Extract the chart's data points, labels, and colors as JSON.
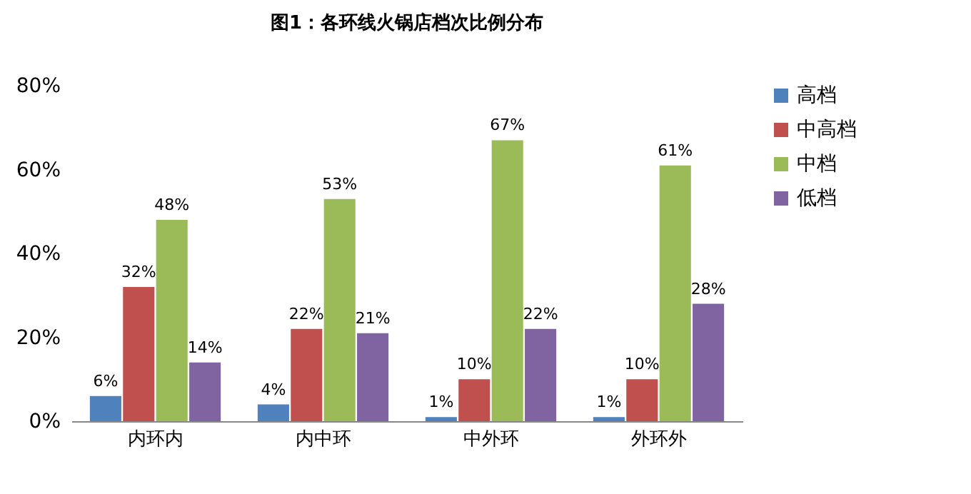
{
  "chart_data": {
    "type": "bar",
    "title": "图1：各环线火锅店档次比例分布",
    "categories": [
      "内环内",
      "内中环",
      "中外环",
      "外环外"
    ],
    "series": [
      {
        "name": "高档",
        "color": "#4f81bd",
        "values": [
          6,
          4,
          1,
          1
        ],
        "value_labels": [
          "6%",
          "4%",
          "1%",
          "1%"
        ]
      },
      {
        "name": "中高档",
        "color": "#c0504d",
        "values": [
          32,
          22,
          10,
          10
        ],
        "value_labels": [
          "32%",
          "22%",
          "10%",
          "10%"
        ]
      },
      {
        "name": "中档",
        "color": "#9bbb59",
        "values": [
          48,
          53,
          67,
          61
        ],
        "value_labels": [
          "48%",
          "53%",
          "67%",
          "61%"
        ]
      },
      {
        "name": "低档",
        "color": "#8064a2",
        "values": [
          14,
          21,
          22,
          28
        ],
        "value_labels": [
          "14%",
          "21%",
          "22%",
          "28%"
        ]
      }
    ],
    "ylim": [
      0,
      80
    ],
    "yticks": [
      {
        "value": 0,
        "label": "0%"
      },
      {
        "value": 20,
        "label": "20%"
      },
      {
        "value": 40,
        "label": "40%"
      },
      {
        "value": 60,
        "label": "60%"
      },
      {
        "value": 80,
        "label": "80%"
      }
    ],
    "grid": false,
    "legend": "right"
  }
}
